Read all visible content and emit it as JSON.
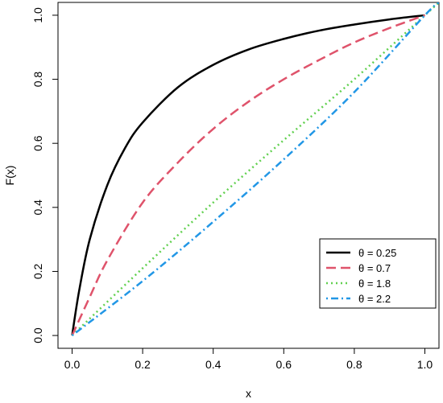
{
  "chart_data": {
    "type": "line",
    "title": "",
    "xlabel": "x",
    "ylabel": "F(x)",
    "xlim": [
      -0.04,
      1.04
    ],
    "ylim": [
      -0.04,
      1.04
    ],
    "x_ticks": [
      0.0,
      0.2,
      0.4,
      0.6,
      0.8,
      1.0
    ],
    "x_tick_labels": [
      "0.0",
      "0.2",
      "0.4",
      "0.6",
      "0.8",
      "1.0"
    ],
    "y_ticks": [
      0.0,
      0.2,
      0.4,
      0.6,
      0.8,
      1.0
    ],
    "y_tick_labels": [
      "0.0",
      "0.2",
      "0.4",
      "0.6",
      "0.8",
      "1.0"
    ],
    "grid": false,
    "legend_position": "bottom-right",
    "series": [
      {
        "name": "θ = 0.25",
        "color": "#000000",
        "dash": "solid",
        "x": [
          0.0,
          0.02,
          0.05,
          0.1,
          0.15,
          0.2,
          0.3,
          0.4,
          0.5,
          0.6,
          0.7,
          0.8,
          0.9,
          1.0
        ],
        "y": [
          0.0,
          0.14,
          0.3,
          0.47,
          0.585,
          0.665,
          0.775,
          0.845,
          0.893,
          0.926,
          0.952,
          0.971,
          0.987,
          1.0
        ]
      },
      {
        "name": "θ = 0.7",
        "color": "#DF536B",
        "dash": "dashed",
        "x": [
          0.0,
          0.05,
          0.1,
          0.2,
          0.3,
          0.4,
          0.5,
          0.6,
          0.7,
          0.8,
          0.9,
          1.0
        ],
        "y": [
          0.0,
          0.12,
          0.235,
          0.415,
          0.54,
          0.645,
          0.73,
          0.8,
          0.86,
          0.915,
          0.96,
          1.0
        ]
      },
      {
        "name": "θ = 1.8",
        "color": "#61D04F",
        "dash": "dotted",
        "x": [
          0.0,
          0.2,
          0.4,
          0.6,
          0.8,
          1.0,
          1.04
        ],
        "y": [
          0.0,
          0.21,
          0.415,
          0.61,
          0.8,
          1.0,
          1.04
        ]
      },
      {
        "name": "θ = 2.2",
        "color": "#2297E6",
        "dash": "dotdash",
        "x": [
          0.0,
          0.2,
          0.4,
          0.6,
          0.8,
          1.0,
          1.04
        ],
        "y": [
          0.0,
          0.17,
          0.355,
          0.55,
          0.76,
          1.0,
          1.04
        ]
      }
    ]
  }
}
